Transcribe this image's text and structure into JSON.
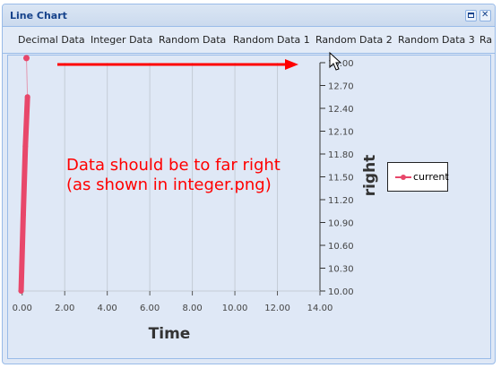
{
  "window": {
    "title": "Line Chart"
  },
  "toolbar": {
    "buttons": [
      "Decimal Data",
      "Integer Data",
      "Random Data",
      "Random Data 1",
      "Random Data 2",
      "Random Data 3",
      "Ra"
    ]
  },
  "annotation": {
    "line1": "Data should be to far right",
    "line2": "(as shown in integer.png)",
    "color": "#ff0000"
  },
  "chart_data": {
    "type": "line",
    "xlabel": "Time",
    "ylabel": "right",
    "x_ticks": [
      "0.00",
      "2.00",
      "4.00",
      "6.00",
      "8.00",
      "10.00",
      "12.00",
      "14.00"
    ],
    "y_ticks": [
      "10.00",
      "10.30",
      "10.60",
      "10.90",
      "11.20",
      "11.50",
      "11.80",
      "12.10",
      "12.40",
      "12.70",
      "13.00"
    ],
    "xlim": [
      -0.2,
      14.0
    ],
    "ylim": [
      10.0,
      13.0
    ],
    "grid": "vertical",
    "legend_position": "right",
    "series": [
      {
        "name": "current",
        "color": "#e8476a",
        "points": [
          [
            -0.05,
            10.0
          ],
          [
            0.05,
            11.0
          ],
          [
            0.15,
            11.9
          ],
          [
            0.25,
            12.55
          ]
        ],
        "outlier": [
          0.2,
          13.06
        ]
      }
    ]
  }
}
